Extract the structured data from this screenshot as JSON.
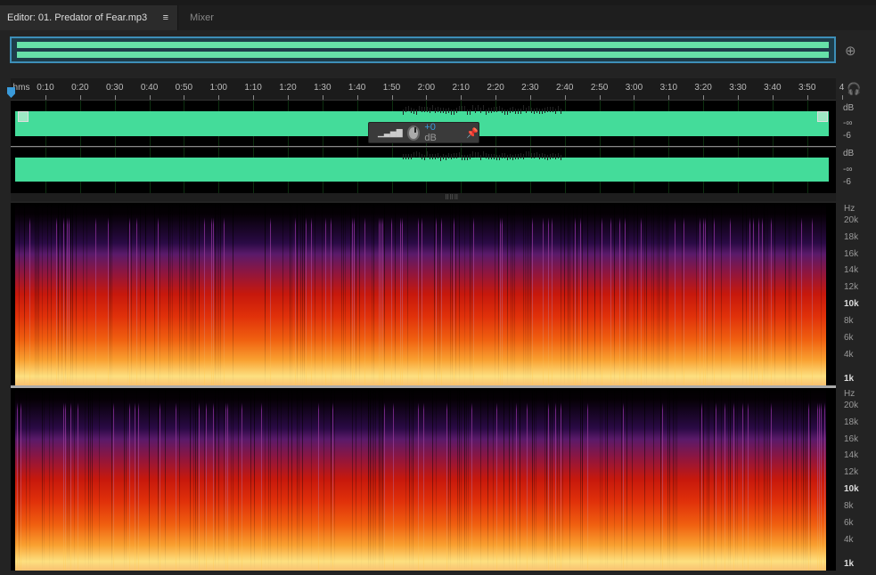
{
  "tabs": {
    "editor": "Editor: 01. Predator of Fear.mp3",
    "menu_icon": "≡",
    "mixer": "Mixer"
  },
  "ruler": {
    "unit": "hms",
    "ticks": [
      "0:10",
      "0:20",
      "0:30",
      "0:40",
      "0:50",
      "1:00",
      "1:10",
      "1:20",
      "1:30",
      "1:40",
      "1:50",
      "2:00",
      "2:10",
      "2:20",
      "2:30",
      "2:40",
      "2:50",
      "3:00",
      "3:10",
      "3:20",
      "3:30",
      "3:40",
      "3:50",
      "4"
    ]
  },
  "waveform": {
    "channels": [
      {
        "db_unit": "dB",
        "db_labels": [
          "-∞",
          "-6"
        ]
      },
      {
        "db_unit": "dB",
        "db_labels": [
          "-∞",
          "-6"
        ]
      }
    ],
    "waveform_color": "#44dc9a"
  },
  "gain_hud": {
    "value": "+0",
    "unit": "dB"
  },
  "spectrogram": {
    "unit": "Hz",
    "labels": [
      "20k",
      "18k",
      "16k",
      "14k",
      "12k",
      "10k",
      "8k",
      "6k",
      "4k",
      "1k"
    ]
  },
  "icons": {
    "zoom": "zoom-icon",
    "headphones": "headphones-icon",
    "pin": "pin-icon"
  }
}
